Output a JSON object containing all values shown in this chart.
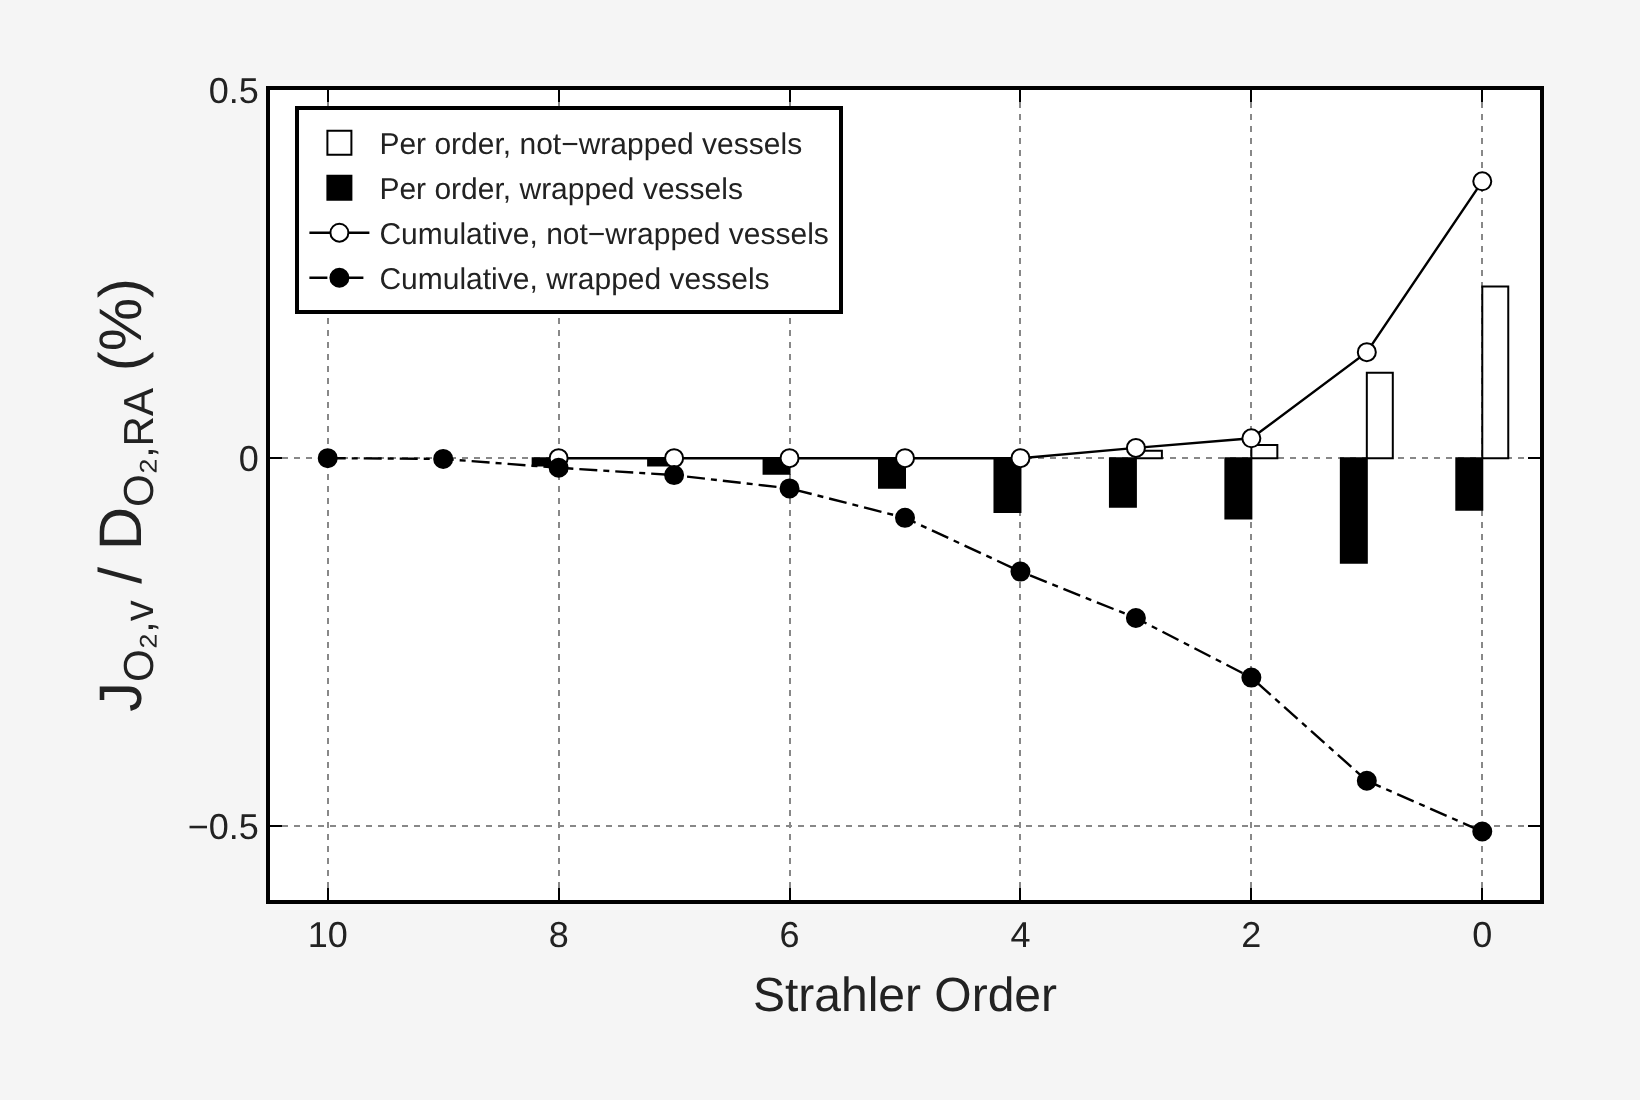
{
  "chart_data": {
    "type": "bar",
    "xlabel": "Strahler Order",
    "ylabel": "J$_{O₂,v}$ / D$_{O₂,RA}$ (%)",
    "x": [
      10,
      9,
      8,
      7,
      6,
      5,
      4,
      3,
      2,
      1,
      0
    ],
    "series": [
      {
        "name": "Per order, not−wrapped vessels",
        "color": "#ffffff",
        "values": [
          null,
          null,
          null,
          null,
          null,
          null,
          null,
          0.01,
          0.018,
          0.116,
          0.233
        ]
      },
      {
        "name": "Per order, wrapped vessels",
        "color": "#000000",
        "values": [
          null,
          null,
          -0.01,
          -0.01,
          -0.021,
          -0.04,
          -0.073,
          -0.066,
          -0.082,
          -0.142,
          -0.07
        ]
      },
      {
        "name": "Cumulative, not−wrapped vessels",
        "type": "line",
        "color": "#ffffff",
        "marker": "circle",
        "line_style": "solid",
        "values": [
          null,
          null,
          0,
          0,
          0,
          0,
          0,
          0.014,
          0.027,
          0.144,
          0.376
        ]
      },
      {
        "name": "Cumulative, wrapped vessels",
        "type": "line",
        "color": "#000000",
        "marker": "circle",
        "line_style": "dashed",
        "values": [
          0,
          -0.001,
          -0.013,
          -0.023,
          -0.041,
          -0.081,
          -0.154,
          -0.217,
          -0.298,
          -0.438,
          -0.507
        ]
      }
    ],
    "xlim": [
      10.5,
      -0.5
    ],
    "xticks": [
      10,
      8,
      6,
      4,
      2,
      0
    ],
    "ylim": [
      -0.6,
      0.5
    ],
    "yticks": [
      {
        "value": -0.5,
        "label": "−0.5"
      },
      0,
      0.5
    ],
    "grid": true,
    "legend": "top left"
  }
}
